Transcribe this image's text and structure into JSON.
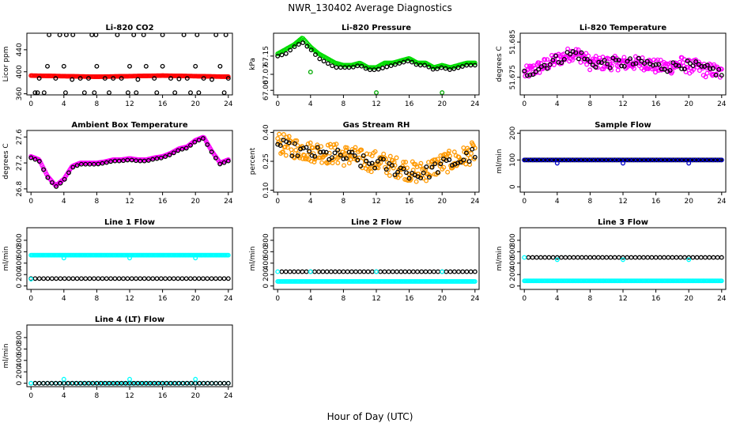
{
  "figure": {
    "title": "NWR_130402  Average Diagnostics",
    "xlabel": "Hour of Day (UTC)"
  },
  "chart_data": [
    {
      "type": "scatter",
      "title": "Li-820 CO2",
      "ylabel": "Licor ppm",
      "xlim": [
        -0.5,
        24.5
      ],
      "ylim": [
        358,
        470
      ],
      "xticks": [
        "0",
        "4",
        "8",
        "12",
        "16",
        "20",
        "24"
      ],
      "yticks": [
        "360",
        "400",
        "440"
      ],
      "series": [
        {
          "color": "#ff0000",
          "pattern": "dense",
          "x_range": [
            0,
            24
          ],
          "values": [
            393,
            392,
            391,
            392,
            393,
            392,
            391
          ]
        },
        {
          "color": "#000000",
          "pattern": "sparse",
          "x": [
            0.5,
            1,
            2,
            3,
            4,
            5,
            6,
            7,
            8,
            9,
            10,
            11,
            12,
            13,
            14,
            15,
            16,
            17,
            18,
            19,
            20,
            21,
            22,
            23,
            24,
            2.2,
            3.5,
            4.3,
            5.1,
            7.4,
            7.9,
            10.5,
            12.5,
            13.7,
            16,
            18.6,
            20.2,
            22.5,
            23.7,
            0.8,
            1.6,
            4.2,
            6.5,
            7.7,
            9.5,
            11.8,
            12.8,
            15.3,
            17.5,
            19.4,
            20.4,
            23.5
          ],
          "values": [
            362,
            388,
            410,
            388,
            410,
            386,
            388,
            388,
            410,
            388,
            388,
            388,
            410,
            386,
            410,
            388,
            410,
            388,
            387,
            388,
            410,
            388,
            386,
            410,
            388,
            467,
            467,
            467,
            467,
            467,
            467,
            467,
            467,
            467,
            467,
            467,
            467,
            467,
            467,
            362,
            362,
            362,
            362,
            362,
            362,
            362,
            362,
            362,
            362,
            362,
            362,
            362
          ]
        }
      ]
    },
    {
      "type": "scatter",
      "title": "Li-820 Pressure",
      "ylabel": "kPa",
      "xlim": [
        -0.5,
        24.5
      ],
      "ylim": [
        66.98,
        67.25
      ],
      "xticks": [
        "0",
        "4",
        "8",
        "12",
        "16",
        "20",
        "24"
      ],
      "yticks": [
        "67.00",
        "67.07",
        "67.15"
      ],
      "series": [
        {
          "color": "#00dd00",
          "pattern": "dense",
          "x_range": [
            0,
            24
          ],
          "values": [
            67.16,
            67.18,
            67.2,
            67.23,
            67.19,
            67.16,
            67.14,
            67.12,
            67.11,
            67.11,
            67.12,
            67.1,
            67.1,
            67.12,
            67.12,
            67.13,
            67.14,
            67.12,
            67.12,
            67.1,
            67.11,
            67.1,
            67.11,
            67.12,
            67.12
          ]
        },
        {
          "color": "#000000",
          "pattern": "trace",
          "x_range": [
            0,
            24
          ],
          "values": [
            67.15,
            67.16,
            67.19,
            67.21,
            67.18,
            67.14,
            67.12,
            67.1,
            67.1,
            67.1,
            67.11,
            67.09,
            67.09,
            67.1,
            67.11,
            67.12,
            67.13,
            67.11,
            67.11,
            67.09,
            67.1,
            67.09,
            67.1,
            67.11,
            67.11
          ]
        },
        {
          "color": "#00aa00",
          "pattern": "sparse",
          "x": [
            4,
            12,
            20
          ],
          "values": [
            67.08,
            66.99,
            66.99
          ]
        }
      ]
    },
    {
      "type": "scatter",
      "title": "Li-820 Temperature",
      "ylabel": "degrees C",
      "xlim": [
        -0.5,
        24.5
      ],
      "ylim": [
        51.67,
        51.6875
      ],
      "xticks": [
        "0",
        "4",
        "8",
        "12",
        "16",
        "20",
        "24"
      ],
      "yticks": [
        "51.675",
        "51.685"
      ],
      "series": [
        {
          "color": "#ff00ff",
          "pattern": "noisy",
          "x_range": [
            0,
            24
          ],
          "values": [
            51.676,
            51.677,
            51.678,
            51.679,
            51.68,
            51.681,
            51.682,
            51.681,
            51.679,
            51.679,
            51.679,
            51.679,
            51.679,
            51.679,
            51.679,
            51.679,
            51.678,
            51.678,
            51.678,
            51.679,
            51.678,
            51.678,
            51.677,
            51.677,
            51.676
          ],
          "spread": 0.004
        },
        {
          "color": "#000000",
          "pattern": "noisy_sparse",
          "x_range": [
            0,
            24
          ],
          "values": [
            51.676,
            51.677,
            51.678,
            51.679,
            51.68,
            51.681,
            51.682,
            51.681,
            51.679,
            51.679,
            51.679,
            51.679,
            51.679,
            51.679,
            51.679,
            51.679,
            51.678,
            51.678,
            51.678,
            51.679,
            51.678,
            51.678,
            51.677,
            51.677,
            51.676
          ],
          "spread": 0.003
        }
      ]
    },
    {
      "type": "scatter",
      "title": "Ambient Box Temperature",
      "ylabel": "degrees C",
      "xlim": [
        -0.5,
        24.5
      ],
      "ylim": [
        26.75,
        27.7
      ],
      "xticks": [
        "0",
        "4",
        "8",
        "12",
        "16",
        "20",
        "24"
      ],
      "yticks": [
        "26.8",
        "27.2",
        "27.6"
      ],
      "series": [
        {
          "color": "#ff00ff",
          "pattern": "dense",
          "x_range": [
            0,
            24
          ],
          "values": [
            27.3,
            27.25,
            27.0,
            26.85,
            26.95,
            27.15,
            27.2,
            27.2,
            27.2,
            27.22,
            27.25,
            27.25,
            27.27,
            27.25,
            27.25,
            27.28,
            27.3,
            27.35,
            27.42,
            27.45,
            27.55,
            27.6,
            27.38,
            27.2,
            27.25
          ]
        },
        {
          "color": "#000000",
          "pattern": "trace",
          "x_range": [
            0,
            24
          ],
          "values": [
            27.28,
            27.23,
            26.98,
            26.83,
            26.93,
            27.13,
            27.18,
            27.18,
            27.18,
            27.2,
            27.23,
            27.23,
            27.25,
            27.23,
            27.23,
            27.26,
            27.28,
            27.33,
            27.4,
            27.43,
            27.53,
            27.58,
            27.36,
            27.18,
            27.23
          ]
        }
      ]
    },
    {
      "type": "scatter",
      "title": "Gas Stream RH",
      "ylabel": "percent",
      "xlim": [
        -0.5,
        24.5
      ],
      "ylim": [
        0.09,
        0.41
      ],
      "xticks": [
        "0",
        "4",
        "8",
        "12",
        "16",
        "20",
        "24"
      ],
      "yticks": [
        "0.10",
        "0.25",
        "0.40"
      ],
      "series": [
        {
          "color": "#ff9900",
          "pattern": "noisy",
          "x_range": [
            0,
            24
          ],
          "values": [
            0.35,
            0.33,
            0.32,
            0.31,
            0.3,
            0.3,
            0.29,
            0.29,
            0.28,
            0.28,
            0.26,
            0.25,
            0.25,
            0.24,
            0.22,
            0.22,
            0.2,
            0.19,
            0.2,
            0.22,
            0.24,
            0.25,
            0.26,
            0.28,
            0.3
          ],
          "spread": 0.11
        },
        {
          "color": "#000000",
          "pattern": "noisy_sparse",
          "x_range": [
            0,
            24
          ],
          "values": [
            0.34,
            0.32,
            0.31,
            0.3,
            0.29,
            0.29,
            0.28,
            0.28,
            0.27,
            0.27,
            0.25,
            0.24,
            0.24,
            0.23,
            0.21,
            0.21,
            0.19,
            0.18,
            0.19,
            0.21,
            0.23,
            0.24,
            0.25,
            0.27,
            0.29
          ],
          "spread": 0.07
        }
      ]
    },
    {
      "type": "scatter",
      "title": "Sample Flow",
      "ylabel": "ml/min",
      "xlim": [
        -0.5,
        24.5
      ],
      "ylim": [
        -20,
        210
      ],
      "xticks": [
        "0",
        "4",
        "8",
        "12",
        "16",
        "20",
        "24"
      ],
      "yticks": [
        "0",
        "100",
        "200"
      ],
      "series": [
        {
          "color": "#000000",
          "pattern": "dense",
          "x_range": [
            0,
            24
          ],
          "values": [
            100,
            100,
            100,
            100,
            100
          ]
        },
        {
          "color": "#0000cc",
          "pattern": "trace",
          "x_range": [
            0,
            24
          ],
          "values": [
            100,
            100,
            100,
            100,
            100
          ]
        },
        {
          "color": "#0000cc",
          "pattern": "sparse",
          "x": [
            4,
            12,
            20
          ],
          "values": [
            88,
            88,
            88
          ]
        }
      ]
    },
    {
      "type": "scatter",
      "title": "Line 1 Flow",
      "ylabel": "ml/min",
      "xlim": [
        -0.5,
        24.5
      ],
      "ylim": [
        -60,
        1020
      ],
      "xticks": [
        "0",
        "4",
        "8",
        "12",
        "16",
        "20",
        "24"
      ],
      "yticks": [
        "0",
        "200",
        "400",
        "600",
        "800"
      ],
      "series": [
        {
          "color": "#00ffff",
          "pattern": "dense",
          "x_range": [
            0,
            24
          ],
          "values": [
            540,
            540,
            540,
            540,
            540
          ]
        },
        {
          "color": "#000000",
          "pattern": "trace",
          "x_range": [
            0,
            24
          ],
          "values": [
            130,
            130,
            130,
            130,
            130
          ]
        },
        {
          "color": "#00ffff",
          "pattern": "sparse",
          "x": [
            0,
            4,
            12,
            20
          ],
          "values": [
            120,
            490,
            490,
            490
          ]
        }
      ]
    },
    {
      "type": "scatter",
      "title": "Line 2 Flow",
      "ylabel": "ml/min",
      "xlim": [
        -0.5,
        24.5
      ],
      "ylim": [
        -60,
        1020
      ],
      "xticks": [
        "0",
        "4",
        "8",
        "12",
        "16",
        "20",
        "24"
      ],
      "yticks": [
        "0",
        "200",
        "400",
        "600",
        "800"
      ],
      "series": [
        {
          "color": "#00ffff",
          "pattern": "dense",
          "x_range": [
            0,
            24
          ],
          "values": [
            80,
            80,
            80,
            80,
            80
          ]
        },
        {
          "color": "#000000",
          "pattern": "trace",
          "x_range": [
            0.5,
            24
          ],
          "values": [
            250,
            250,
            250,
            250,
            250
          ]
        },
        {
          "color": "#00ffff",
          "pattern": "sparse",
          "x": [
            0,
            4,
            12,
            20
          ],
          "values": [
            250,
            250,
            250,
            250
          ]
        }
      ]
    },
    {
      "type": "scatter",
      "title": "Line 3 Flow",
      "ylabel": "ml/min",
      "xlim": [
        -0.5,
        24.5
      ],
      "ylim": [
        -60,
        1020
      ],
      "xticks": [
        "0",
        "4",
        "8",
        "12",
        "16",
        "20",
        "24"
      ],
      "yticks": [
        "0",
        "200",
        "400",
        "600",
        "800"
      ],
      "series": [
        {
          "color": "#00ffff",
          "pattern": "dense",
          "x_range": [
            0,
            24
          ],
          "values": [
            90,
            90,
            90,
            90,
            90
          ]
        },
        {
          "color": "#000000",
          "pattern": "trace",
          "x_range": [
            0.5,
            24
          ],
          "values": [
            500,
            500,
            500,
            500,
            500
          ]
        },
        {
          "color": "#00ffff",
          "pattern": "sparse",
          "x": [
            0,
            4,
            12,
            20
          ],
          "values": [
            500,
            460,
            460,
            460
          ]
        }
      ]
    },
    {
      "type": "scatter",
      "title": "Line 4 (LT) Flow",
      "ylabel": "ml/min",
      "xlim": [
        -0.5,
        24.5
      ],
      "ylim": [
        -60,
        1020
      ],
      "xticks": [
        "0",
        "4",
        "8",
        "12",
        "16",
        "20",
        "24"
      ],
      "yticks": [
        "0",
        "200",
        "400",
        "600",
        "800"
      ],
      "series": [
        {
          "color": "#00ffff",
          "pattern": "trace",
          "x_range": [
            0,
            24
          ],
          "values": [
            0,
            0,
            0,
            0,
            0
          ]
        },
        {
          "color": "#000000",
          "pattern": "trace",
          "x_range": [
            0.5,
            24
          ],
          "values": [
            0,
            0,
            0,
            0,
            0
          ]
        },
        {
          "color": "#00ffff",
          "pattern": "sparse",
          "x": [
            0,
            4,
            12,
            20
          ],
          "values": [
            0,
            70,
            70,
            70
          ]
        }
      ]
    }
  ]
}
